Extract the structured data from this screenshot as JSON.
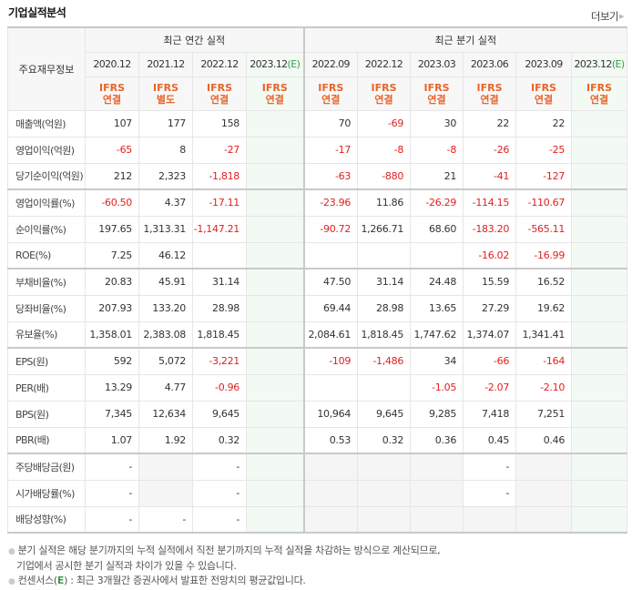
{
  "header": {
    "title": "기업실적분석",
    "more_label": "더보기"
  },
  "table": {
    "corner_label": "주요재무정보",
    "groups": {
      "annual": "최근 연간 실적",
      "quarterly": "최근 분기 실적"
    },
    "periods": [
      {
        "label": "2020.12",
        "est": "",
        "basis1": "IFRS",
        "basis2": "연결"
      },
      {
        "label": "2021.12",
        "est": "",
        "basis1": "IFRS",
        "basis2": "별도"
      },
      {
        "label": "2022.12",
        "est": "",
        "basis1": "IFRS",
        "basis2": "연결"
      },
      {
        "label": "2023.12",
        "est": "(E)",
        "basis1": "IFRS",
        "basis2": "연결"
      },
      {
        "label": "2022.09",
        "est": "",
        "basis1": "IFRS",
        "basis2": "연결"
      },
      {
        "label": "2022.12",
        "est": "",
        "basis1": "IFRS",
        "basis2": "연결"
      },
      {
        "label": "2023.03",
        "est": "",
        "basis1": "IFRS",
        "basis2": "연결"
      },
      {
        "label": "2023.06",
        "est": "",
        "basis1": "IFRS",
        "basis2": "연결"
      },
      {
        "label": "2023.09",
        "est": "",
        "basis1": "IFRS",
        "basis2": "연결"
      },
      {
        "label": "2023.12",
        "est": "(E)",
        "basis1": "IFRS",
        "basis2": "연결"
      }
    ],
    "rows": [
      {
        "label": "매출액(억원)",
        "values": [
          "107",
          "177",
          "158",
          "",
          "70",
          "-69",
          "30",
          "22",
          "22",
          ""
        ]
      },
      {
        "label": "영업이익(억원)",
        "values": [
          "-65",
          "8",
          "-27",
          "",
          "-17",
          "-8",
          "-8",
          "-26",
          "-25",
          ""
        ]
      },
      {
        "label": "당기순이익(억원)",
        "values": [
          "212",
          "2,323",
          "-1,818",
          "",
          "-63",
          "-880",
          "21",
          "-41",
          "-127",
          ""
        ]
      },
      {
        "label": "영업이익률(%)",
        "values": [
          "-60.50",
          "4.37",
          "-17.11",
          "",
          "-23.96",
          "11.86",
          "-26.29",
          "-114.15",
          "-110.67",
          ""
        ]
      },
      {
        "label": "순이익률(%)",
        "values": [
          "197.65",
          "1,313.31",
          "-1,147.21",
          "",
          "-90.72",
          "1,266.71",
          "68.60",
          "-183.20",
          "-565.11",
          ""
        ]
      },
      {
        "label": "ROE(%)",
        "values": [
          "7.25",
          "46.12",
          "",
          "",
          "",
          "",
          "",
          "-16.02",
          "-16.99",
          ""
        ]
      },
      {
        "label": "부채비율(%)",
        "values": [
          "20.83",
          "45.91",
          "31.14",
          "",
          "47.50",
          "31.14",
          "24.48",
          "15.59",
          "16.52",
          ""
        ]
      },
      {
        "label": "당좌비율(%)",
        "values": [
          "207.93",
          "133.20",
          "28.98",
          "",
          "69.44",
          "28.98",
          "13.65",
          "27.29",
          "19.62",
          ""
        ]
      },
      {
        "label": "유보율(%)",
        "values": [
          "1,358.01",
          "2,383.08",
          "1,818.45",
          "",
          "2,084.61",
          "1,818.45",
          "1,747.62",
          "1,374.07",
          "1,341.41",
          ""
        ]
      },
      {
        "label": "EPS(원)",
        "values": [
          "592",
          "5,072",
          "-3,221",
          "",
          "-109",
          "-1,486",
          "34",
          "-66",
          "-164",
          ""
        ]
      },
      {
        "label": "PER(배)",
        "values": [
          "13.29",
          "4.77",
          "-0.96",
          "",
          "",
          "",
          "-1.05",
          "-2.07",
          "-2.10",
          ""
        ]
      },
      {
        "label": "BPS(원)",
        "values": [
          "7,345",
          "12,634",
          "9,645",
          "",
          "10,964",
          "9,645",
          "9,285",
          "7,418",
          "7,251",
          ""
        ]
      },
      {
        "label": "PBR(배)",
        "values": [
          "1.07",
          "1.92",
          "0.32",
          "",
          "0.53",
          "0.32",
          "0.36",
          "0.45",
          "0.46",
          ""
        ]
      },
      {
        "label": "주당배당금(원)",
        "values": [
          "-",
          "",
          "-",
          "",
          "",
          "",
          "",
          "-",
          "",
          ""
        ]
      },
      {
        "label": "시가배당률(%)",
        "values": [
          "-",
          "",
          "-",
          "",
          "",
          "",
          "",
          "-",
          "",
          ""
        ]
      },
      {
        "label": "배당성향(%)",
        "values": [
          "-",
          "-",
          "-",
          "",
          "",
          "",
          "",
          "",
          "",
          ""
        ]
      }
    ]
  },
  "notes": {
    "line1": "분기 실적은 해당 분기까지의 누적 실적에서 직전 분기까지의 누적 실적을 차감하는 방식으로 계산되므로,",
    "line2": "기업에서 공시한 분기 실적과 차이가 있을 수 있습니다.",
    "line3_prefix": "컨센서스(",
    "line3_e": "E",
    "line3_suffix": ") : 최근 3개월간 증권사에서 발표한 전망치의 평균값입니다."
  },
  "colors": {
    "negative": "#e01f1f",
    "ifrs": "#e8642a",
    "estimate": "#3a9a4a",
    "estimate_bg": "#f3f9f3"
  }
}
